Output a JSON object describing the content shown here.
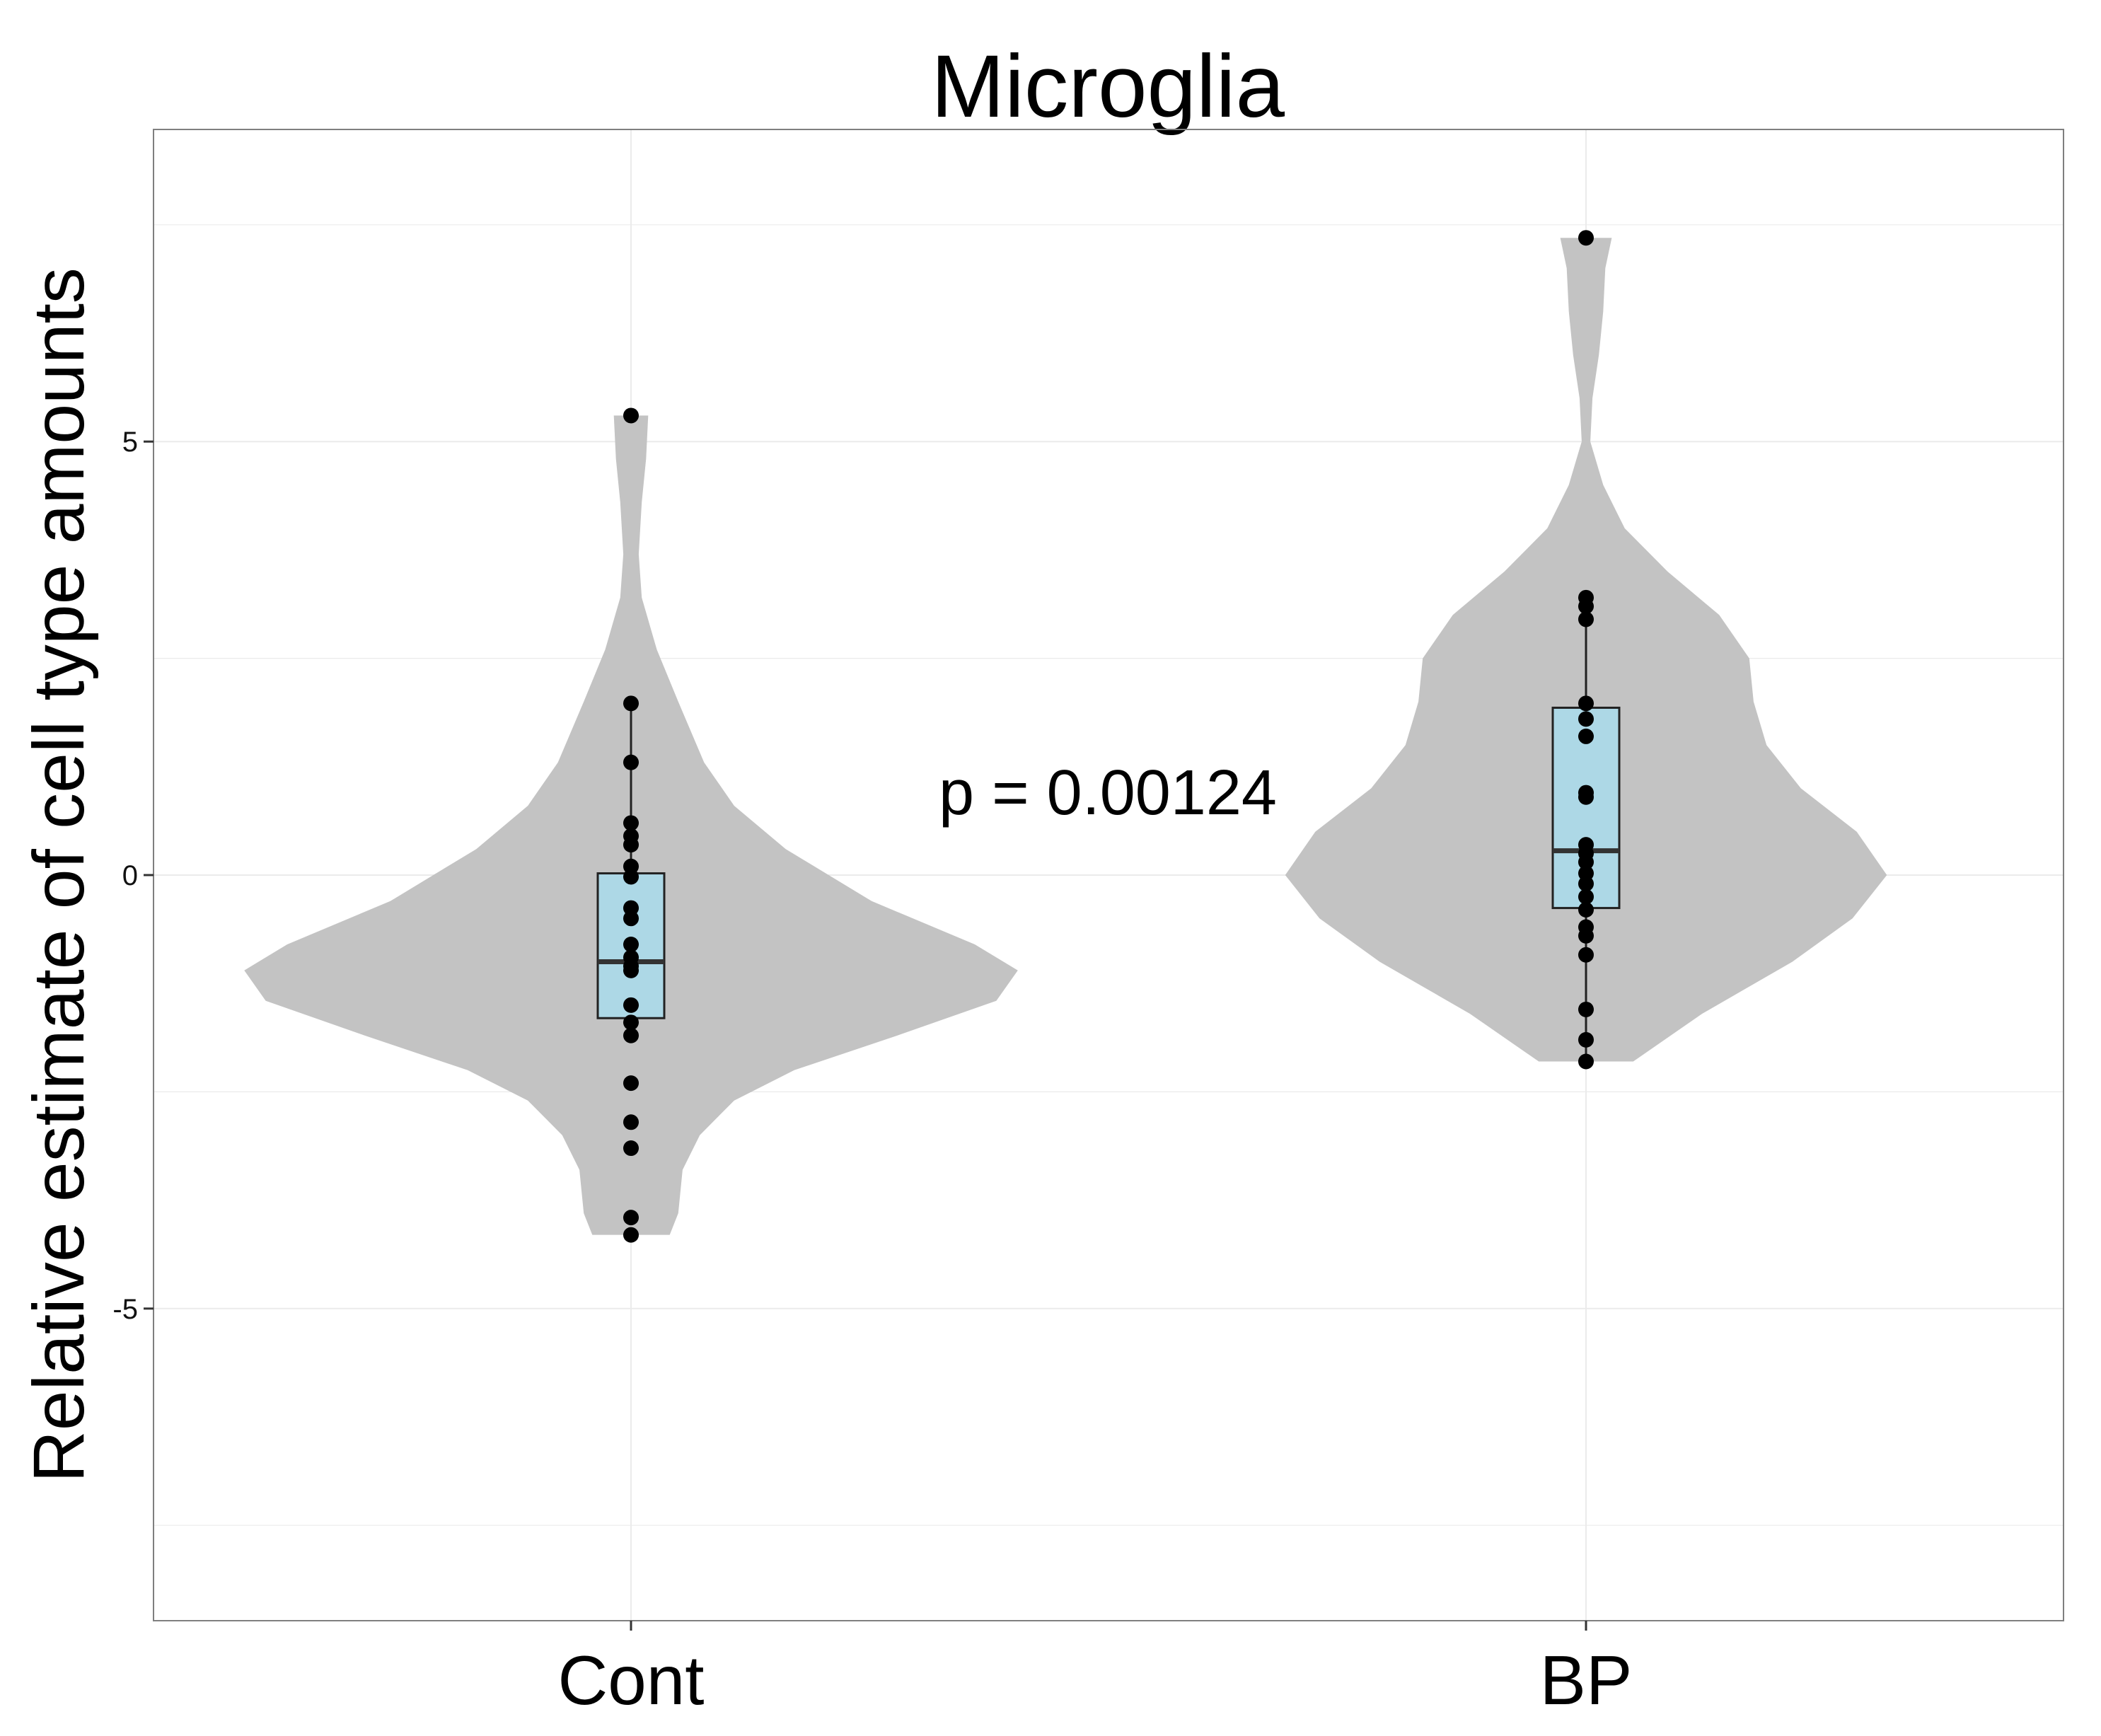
{
  "chart_data": {
    "type": "violin",
    "title": "Microglia",
    "xlabel": "",
    "ylabel": "Relative estimate of cell type amounts",
    "categories": [
      "Cont",
      "BP"
    ],
    "yticks": [
      {
        "value": -5,
        "label": "-5"
      },
      {
        "value": 0,
        "label": "0"
      },
      {
        "value": 5,
        "label": "5"
      }
    ],
    "ylim": [
      -8.6,
      8.6
    ],
    "grid": true,
    "annotation": {
      "text": "p = 0.00124",
      "y": 0.95
    },
    "colors": {
      "violin_fill": "#c3c3c3",
      "box_fill": "#add8e6",
      "box_stroke": "#222222",
      "median": "#333333",
      "point": "#000000",
      "grid": "#ebebeb",
      "panel_border": "#7f7f7f"
    },
    "series": [
      {
        "category": "Cont",
        "violin_range": [
          -4.15,
          5.3
        ],
        "violin_profile": [
          [
            -4.15,
            0.09
          ],
          [
            -3.9,
            0.11
          ],
          [
            -3.4,
            0.12
          ],
          [
            -3.0,
            0.16
          ],
          [
            -2.6,
            0.24
          ],
          [
            -2.25,
            0.38
          ],
          [
            -1.85,
            0.62
          ],
          [
            -1.45,
            0.85
          ],
          [
            -1.1,
            0.9
          ],
          [
            -0.8,
            0.8
          ],
          [
            -0.3,
            0.56
          ],
          [
            0.3,
            0.36
          ],
          [
            0.8,
            0.24
          ],
          [
            1.3,
            0.17
          ],
          [
            2.0,
            0.11
          ],
          [
            2.6,
            0.06
          ],
          [
            3.2,
            0.025
          ],
          [
            3.7,
            0.018
          ],
          [
            4.3,
            0.025
          ],
          [
            4.8,
            0.035
          ],
          [
            5.3,
            0.04
          ]
        ],
        "box": {
          "lower": -1.65,
          "q1": -1.65,
          "median": -1.0,
          "q3": 0.02,
          "upper": 1.98
        },
        "points": [
          5.3,
          1.98,
          1.3,
          0.6,
          0.45,
          0.35,
          0.1,
          -0.02,
          -0.38,
          -0.5,
          -0.8,
          -0.95,
          -1.05,
          -1.1,
          -1.5,
          -1.7,
          -1.85,
          -2.4,
          -2.85,
          -3.15,
          -3.95,
          -4.15
        ]
      },
      {
        "category": "BP",
        "violin_range": [
          -2.15,
          7.35
        ],
        "violin_profile": [
          [
            -2.15,
            0.11
          ],
          [
            -1.6,
            0.27
          ],
          [
            -1.0,
            0.48
          ],
          [
            -0.5,
            0.62
          ],
          [
            0.0,
            0.7
          ],
          [
            0.5,
            0.63
          ],
          [
            1.0,
            0.5
          ],
          [
            1.5,
            0.42
          ],
          [
            2.0,
            0.39
          ],
          [
            2.5,
            0.38
          ],
          [
            3.0,
            0.31
          ],
          [
            3.5,
            0.19
          ],
          [
            4.0,
            0.09
          ],
          [
            4.5,
            0.04
          ],
          [
            5.0,
            0.01
          ],
          [
            5.5,
            0.015
          ],
          [
            6.0,
            0.03
          ],
          [
            6.5,
            0.04
          ],
          [
            7.0,
            0.045
          ],
          [
            7.35,
            0.06
          ]
        ],
        "box": {
          "lower": -2.15,
          "q1": -0.38,
          "median": 0.28,
          "q3": 1.93,
          "upper": 3.2
        },
        "points": [
          7.35,
          3.2,
          3.1,
          2.95,
          1.98,
          1.8,
          1.6,
          0.95,
          0.9,
          0.35,
          0.25,
          0.15,
          0.02,
          -0.1,
          -0.25,
          -0.4,
          -0.6,
          -0.7,
          -0.92,
          -1.55,
          -1.9,
          -2.15
        ]
      }
    ]
  }
}
